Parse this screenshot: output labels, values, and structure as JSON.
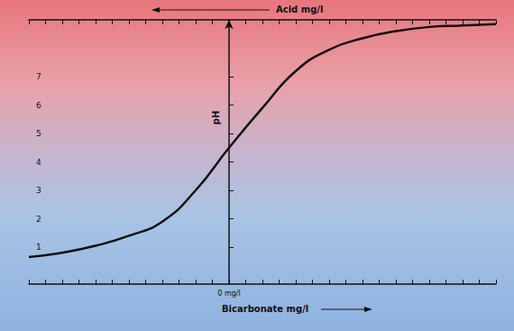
{
  "chart_data": {
    "type": "line",
    "top_label": "Acid mg/l",
    "xlabel": "Bicarbonate mg/l",
    "ylabel": "pH",
    "x": [
      -12,
      -10,
      -8,
      -6,
      -4,
      -2,
      0,
      2,
      4,
      6,
      8,
      10,
      12,
      14,
      16
    ],
    "values": [
      0.65,
      0.8,
      1.05,
      1.4,
      1.9,
      3.0,
      4.5,
      5.9,
      7.2,
      7.95,
      8.35,
      8.6,
      8.75,
      8.8,
      8.85
    ],
    "color": "#111111",
    "xlim": [
      -12,
      16
    ],
    "ylim": [
      -0.3,
      9.0
    ],
    "xticks": [
      {
        "value": 0,
        "label": "0 mg/l"
      }
    ],
    "yticks": [
      1,
      2,
      3,
      4,
      5,
      6,
      7
    ],
    "grid": false
  }
}
